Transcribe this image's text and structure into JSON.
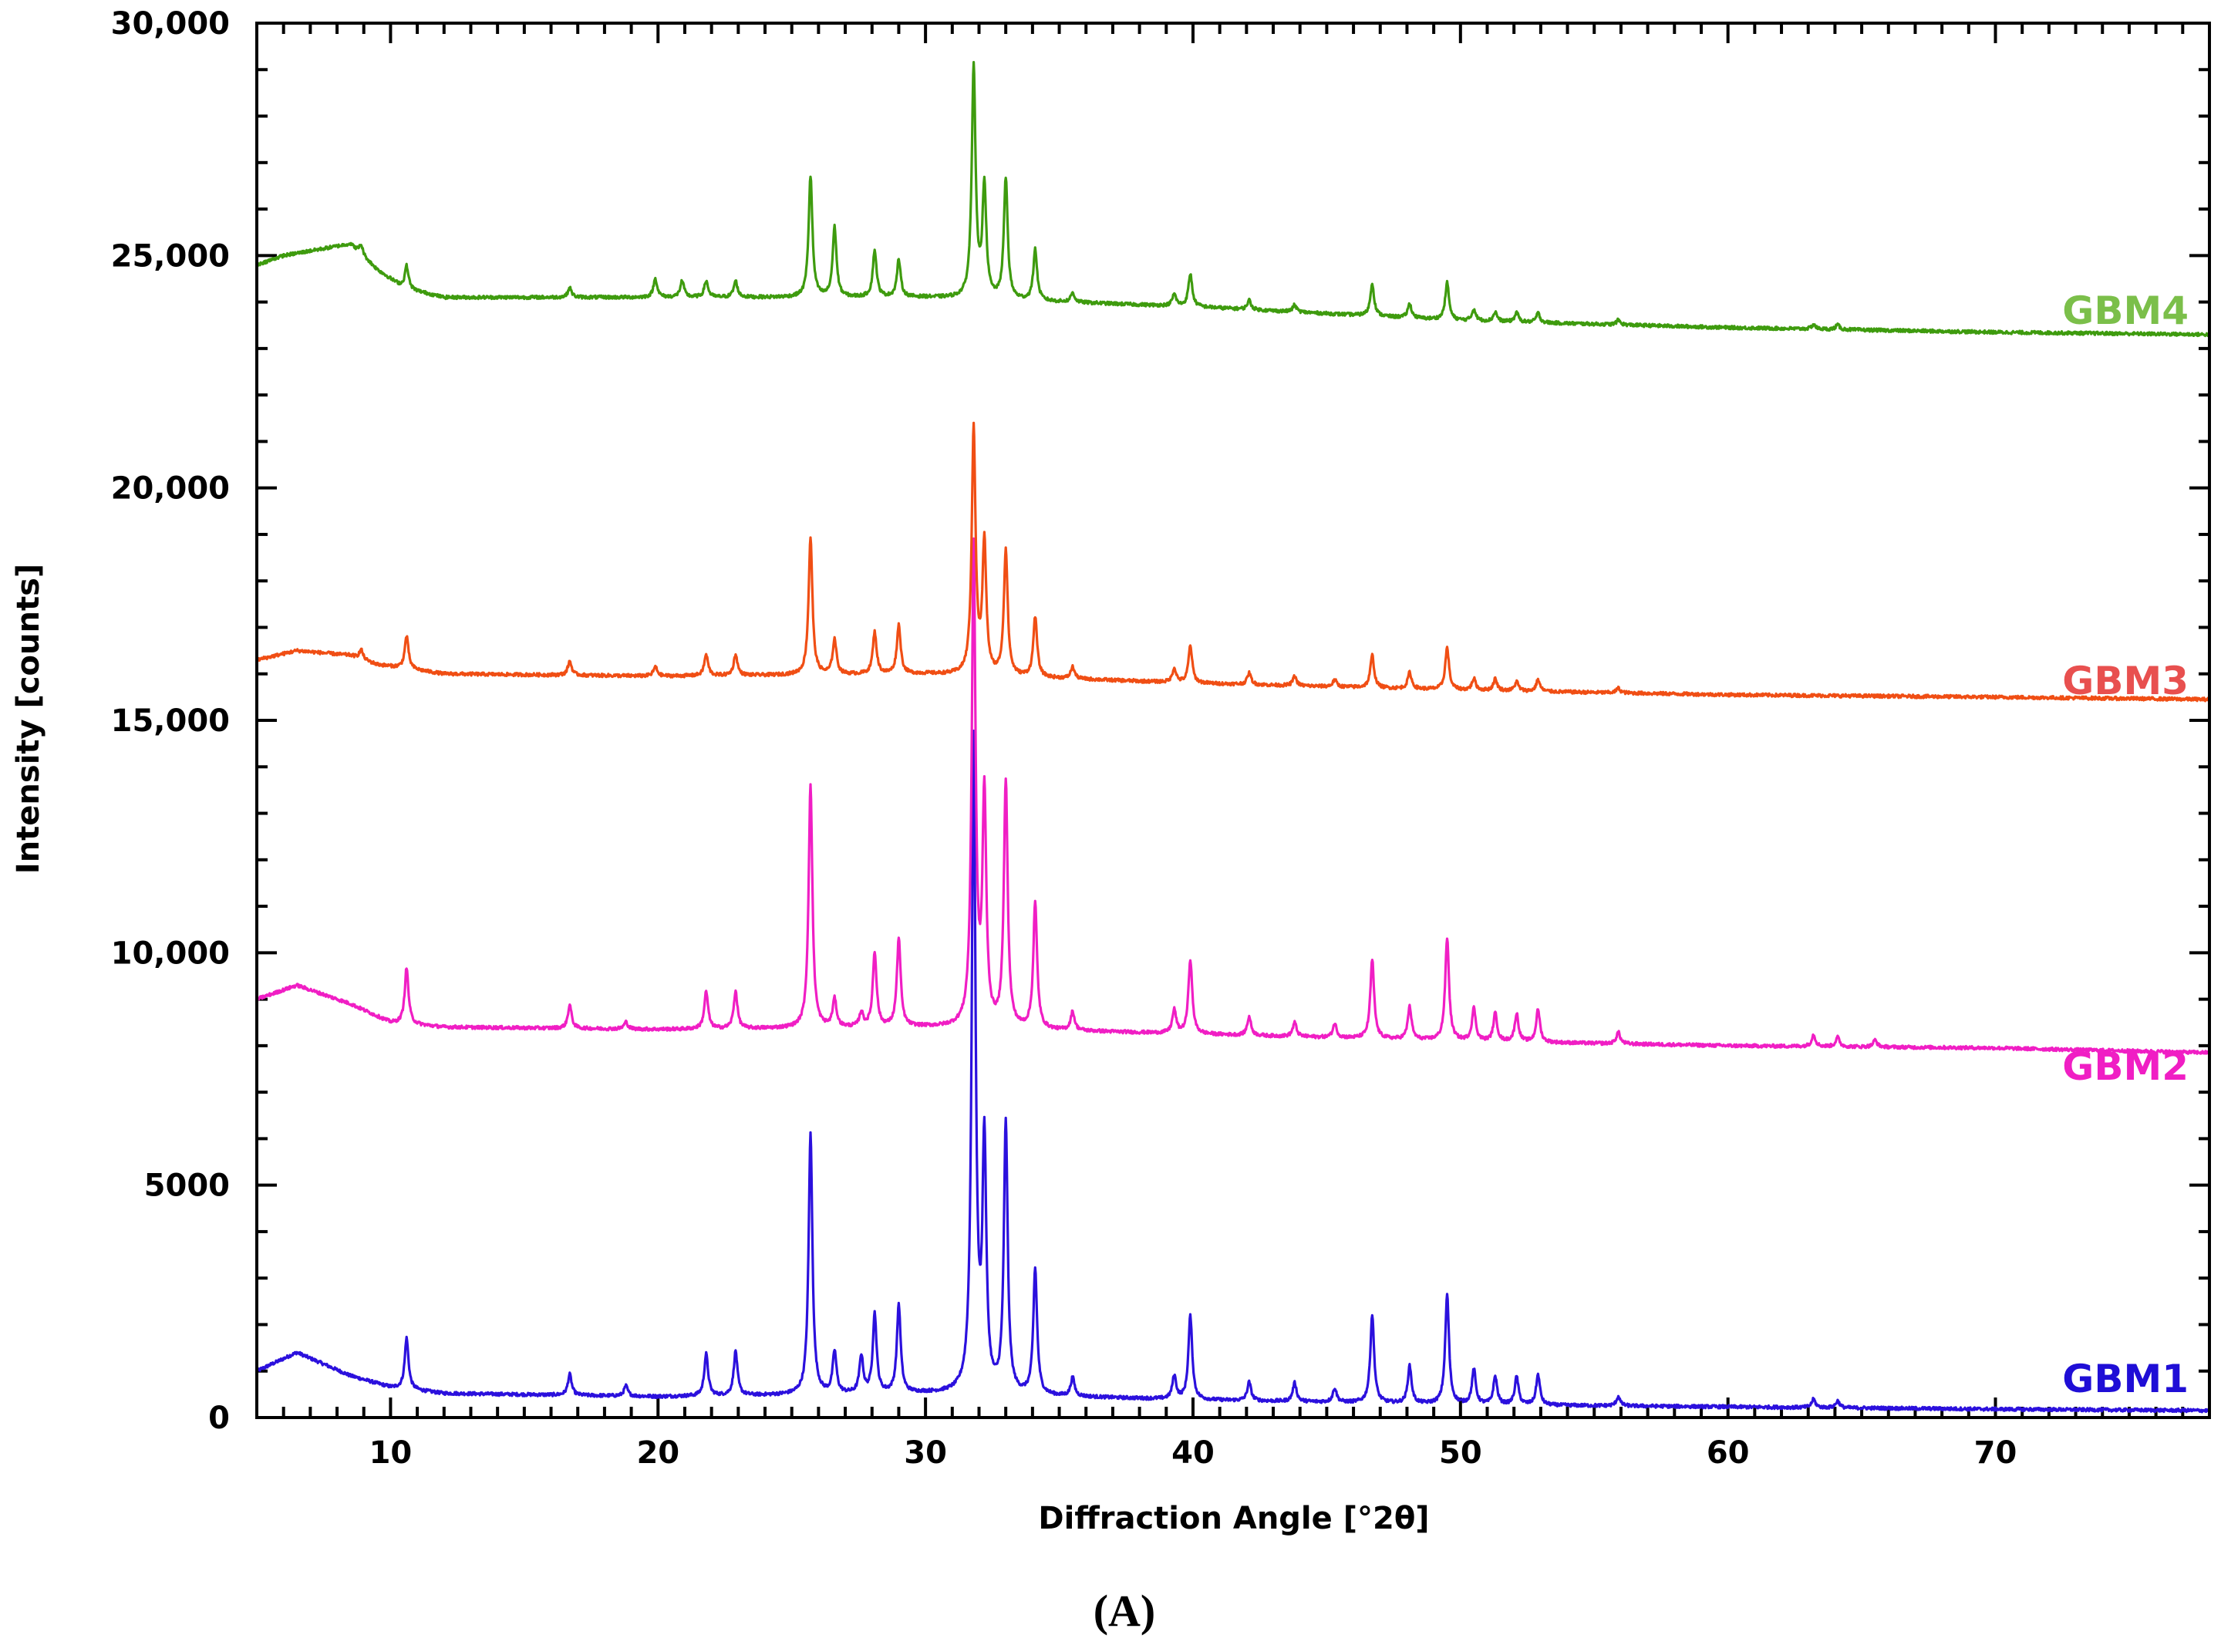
{
  "chart_data": {
    "type": "line",
    "xlabel": "Diffraction Angle [°2θ]",
    "ylabel": "Intensity [counts]",
    "xlim": [
      5,
      78
    ],
    "ylim": [
      0,
      30000
    ],
    "x_ticks": [
      10,
      20,
      30,
      40,
      50,
      60,
      70
    ],
    "y_ticks": [
      0,
      5000,
      10000,
      15000,
      20000,
      25000,
      30000
    ],
    "y_tick_labels": [
      "0",
      "5000",
      "10,000",
      "15,000",
      "20,000",
      "25,000",
      "30,000"
    ],
    "panel_label": "(A)",
    "series": [
      {
        "name": "GBM1",
        "color": "#2b10dd",
        "label_color": "#1f0ed6",
        "baseline": [
          [
            5,
            1000
          ],
          [
            6.5,
            1400
          ],
          [
            8.5,
            900
          ],
          [
            10,
            650
          ],
          [
            12,
            520
          ],
          [
            20,
            450
          ],
          [
            30,
            520
          ],
          [
            40,
            380
          ],
          [
            50,
            280
          ],
          [
            60,
            230
          ],
          [
            70,
            180
          ],
          [
            78,
            150
          ]
        ],
        "peaks": [
          [
            10.6,
            1100
          ],
          [
            16.7,
            450
          ],
          [
            18.8,
            220
          ],
          [
            21.8,
            900
          ],
          [
            22.9,
            950
          ],
          [
            25.7,
            5600
          ],
          [
            26.6,
            900
          ],
          [
            27.6,
            800
          ],
          [
            28.1,
            1700
          ],
          [
            29.0,
            1900
          ],
          [
            31.8,
            14000
          ],
          [
            32.2,
            5300
          ],
          [
            33.0,
            5800
          ],
          [
            34.1,
            2700
          ],
          [
            35.5,
            400
          ],
          [
            39.3,
            500
          ],
          [
            39.9,
            1800
          ],
          [
            42.1,
            400
          ],
          [
            43.8,
            400
          ],
          [
            45.3,
            300
          ],
          [
            46.7,
            1900
          ],
          [
            48.1,
            800
          ],
          [
            49.5,
            2350
          ],
          [
            50.5,
            750
          ],
          [
            51.3,
            600
          ],
          [
            52.1,
            600
          ],
          [
            52.9,
            650
          ],
          [
            55.9,
            200
          ],
          [
            63.2,
            180
          ],
          [
            64.1,
            150
          ]
        ]
      },
      {
        "name": "GBM2",
        "color": "#f01ec4",
        "label_color": "#f01ec4",
        "baseline": [
          [
            5,
            9000
          ],
          [
            6.5,
            9300
          ],
          [
            8.5,
            8900
          ],
          [
            10,
            8500
          ],
          [
            12,
            8400
          ],
          [
            20,
            8350
          ],
          [
            30,
            8400
          ],
          [
            40,
            8250
          ],
          [
            50,
            8100
          ],
          [
            60,
            8000
          ],
          [
            70,
            7950
          ],
          [
            78,
            7850
          ]
        ],
        "peaks": [
          [
            10.6,
            1200
          ],
          [
            16.7,
            500
          ],
          [
            18.8,
            150
          ],
          [
            21.8,
            800
          ],
          [
            22.9,
            800
          ],
          [
            25.7,
            5200
          ],
          [
            26.6,
            600
          ],
          [
            27.6,
            300
          ],
          [
            28.1,
            1600
          ],
          [
            29.0,
            1900
          ],
          [
            31.8,
            10300
          ],
          [
            32.2,
            4900
          ],
          [
            33.0,
            5300
          ],
          [
            34.1,
            2700
          ],
          [
            35.5,
            400
          ],
          [
            39.3,
            500
          ],
          [
            39.9,
            1600
          ],
          [
            42.1,
            400
          ],
          [
            43.8,
            300
          ],
          [
            45.3,
            300
          ],
          [
            46.7,
            1700
          ],
          [
            48.1,
            700
          ],
          [
            49.5,
            2200
          ],
          [
            50.5,
            700
          ],
          [
            51.3,
            600
          ],
          [
            52.1,
            600
          ],
          [
            52.9,
            700
          ],
          [
            55.9,
            250
          ],
          [
            63.2,
            250
          ],
          [
            64.1,
            200
          ],
          [
            65.5,
            150
          ]
        ]
      },
      {
        "name": "GBM3",
        "color": "#f04e14",
        "label_color": "#e8504f",
        "baseline": [
          [
            5,
            16300
          ],
          [
            6.5,
            16500
          ],
          [
            8.5,
            16400
          ],
          [
            9.5,
            16200
          ],
          [
            12,
            16000
          ],
          [
            20,
            15950
          ],
          [
            30,
            16000
          ],
          [
            40,
            15800
          ],
          [
            50,
            15650
          ],
          [
            60,
            15550
          ],
          [
            70,
            15500
          ],
          [
            78,
            15450
          ]
        ],
        "peaks": [
          [
            8.9,
            200
          ],
          [
            10.6,
            700
          ],
          [
            16.7,
            300
          ],
          [
            19.9,
            200
          ],
          [
            21.8,
            450
          ],
          [
            22.9,
            450
          ],
          [
            25.7,
            2950
          ],
          [
            26.6,
            750
          ],
          [
            28.1,
            900
          ],
          [
            29.0,
            1050
          ],
          [
            31.8,
            5300
          ],
          [
            32.2,
            2800
          ],
          [
            33.0,
            2700
          ],
          [
            34.1,
            1300
          ],
          [
            35.5,
            250
          ],
          [
            39.3,
            300
          ],
          [
            39.9,
            800
          ],
          [
            42.1,
            250
          ],
          [
            43.8,
            200
          ],
          [
            45.3,
            150
          ],
          [
            46.7,
            700
          ],
          [
            48.1,
            350
          ],
          [
            49.5,
            900
          ],
          [
            50.5,
            250
          ],
          [
            51.3,
            250
          ],
          [
            52.1,
            200
          ],
          [
            52.9,
            250
          ],
          [
            55.9,
            100
          ]
        ]
      },
      {
        "name": "GBM4",
        "color": "#3e9b0e",
        "label_color": "#7bbf4a",
        "baseline": [
          [
            5,
            24800
          ],
          [
            6,
            25000
          ],
          [
            7,
            25100
          ],
          [
            8.5,
            25250
          ],
          [
            9.5,
            24700
          ],
          [
            10.5,
            24300
          ],
          [
            12,
            24100
          ],
          [
            20,
            24100
          ],
          [
            30,
            24100
          ],
          [
            40,
            23900
          ],
          [
            50,
            23600
          ],
          [
            60,
            23450
          ],
          [
            70,
            23350
          ],
          [
            78,
            23300
          ]
        ],
        "peaks": [
          [
            8.9,
            200
          ],
          [
            10.6,
            500
          ],
          [
            16.7,
            200
          ],
          [
            19.9,
            400
          ],
          [
            20.9,
            350
          ],
          [
            21.8,
            350
          ],
          [
            22.9,
            350
          ],
          [
            25.7,
            2600
          ],
          [
            26.6,
            1500
          ],
          [
            28.1,
            1000
          ],
          [
            29.0,
            800
          ],
          [
            31.8,
            5000
          ],
          [
            32.2,
            2400
          ],
          [
            33.0,
            2600
          ],
          [
            34.1,
            1100
          ],
          [
            35.5,
            200
          ],
          [
            39.3,
            250
          ],
          [
            39.9,
            700
          ],
          [
            42.1,
            200
          ],
          [
            43.8,
            150
          ],
          [
            46.7,
            700
          ],
          [
            48.1,
            300
          ],
          [
            49.5,
            800
          ],
          [
            50.5,
            250
          ],
          [
            51.3,
            200
          ],
          [
            52.1,
            200
          ],
          [
            52.9,
            200
          ],
          [
            55.9,
            100
          ],
          [
            63.2,
            100
          ],
          [
            64.1,
            100
          ]
        ]
      }
    ]
  }
}
